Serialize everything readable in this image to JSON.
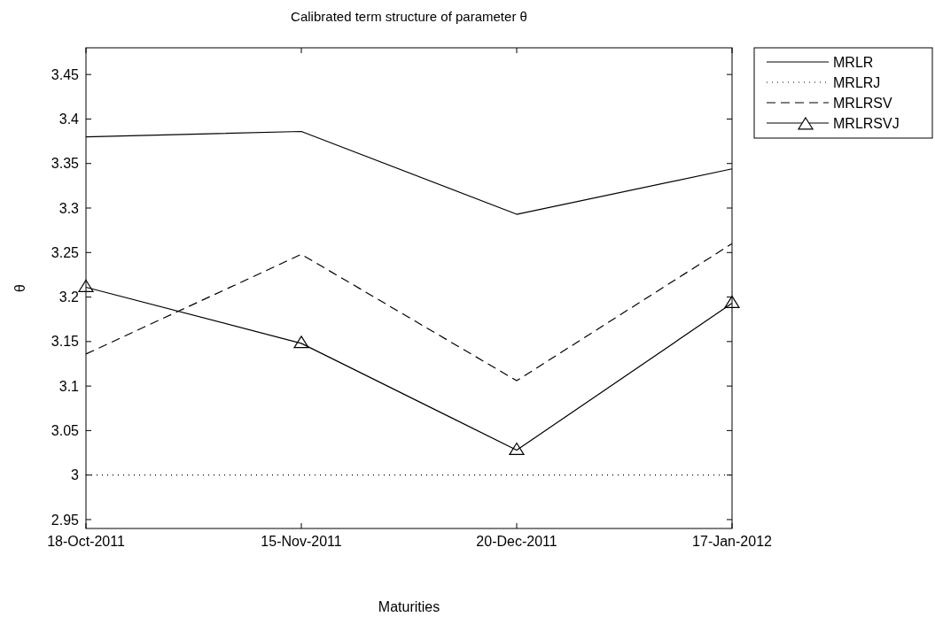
{
  "chart_data": {
    "type": "line",
    "title": "Calibrated term structure of parameter θ",
    "xlabel": "Maturities",
    "ylabel": "θ",
    "categories": [
      "18-Oct-2011",
      "15-Nov-2011",
      "20-Dec-2011",
      "17-Jan-2012"
    ],
    "ylim": [
      2.94,
      3.48
    ],
    "yticks": [
      2.95,
      3,
      3.05,
      3.1,
      3.15,
      3.2,
      3.25,
      3.3,
      3.35,
      3.4,
      3.45
    ],
    "grid": false,
    "legend": "top right",
    "series": [
      {
        "name": "MRLR",
        "color": "#000000",
        "line_style": "solid",
        "marker": "none",
        "values": [
          3.38,
          3.386,
          3.293,
          3.344
        ]
      },
      {
        "name": "MRLRJ",
        "color": "#000000",
        "line_style": "dotted",
        "marker": "none",
        "values": [
          3.0,
          3.0,
          3.0,
          3.0
        ]
      },
      {
        "name": "MRLRSV",
        "color": "#000000",
        "line_style": "dashed",
        "marker": "none",
        "values": [
          3.136,
          3.248,
          3.106,
          3.26
        ]
      },
      {
        "name": "MRLRSVJ",
        "color": "#000000",
        "line_style": "solid",
        "marker": "triangle",
        "values": [
          3.211,
          3.148,
          3.028,
          3.193
        ]
      }
    ]
  }
}
